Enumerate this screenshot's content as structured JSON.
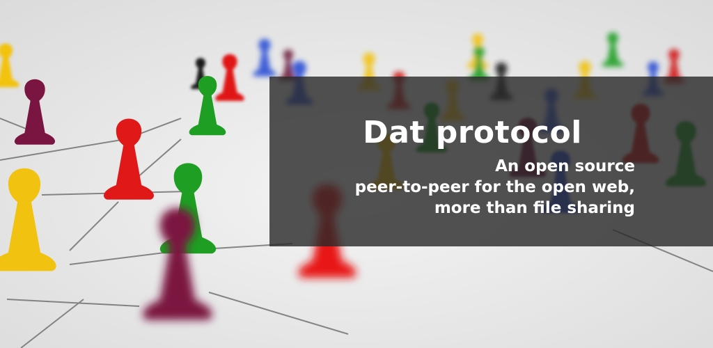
{
  "banner": {
    "title": "Dat protocol",
    "subtitle_lines": [
      "An open source",
      "peer-to-peer for the open web,",
      "more than file sharing"
    ]
  },
  "colors": {
    "background": "#ececec",
    "overlay": "rgba(40,40,40,0.80)",
    "text": "#ffffff",
    "pawn_red": "#e01818",
    "pawn_green": "#1e9e22",
    "pawn_yellow": "#f2c210",
    "pawn_blue": "#2a4fd6",
    "pawn_purple": "#7a1440",
    "pawn_black": "#1e1e1e"
  }
}
